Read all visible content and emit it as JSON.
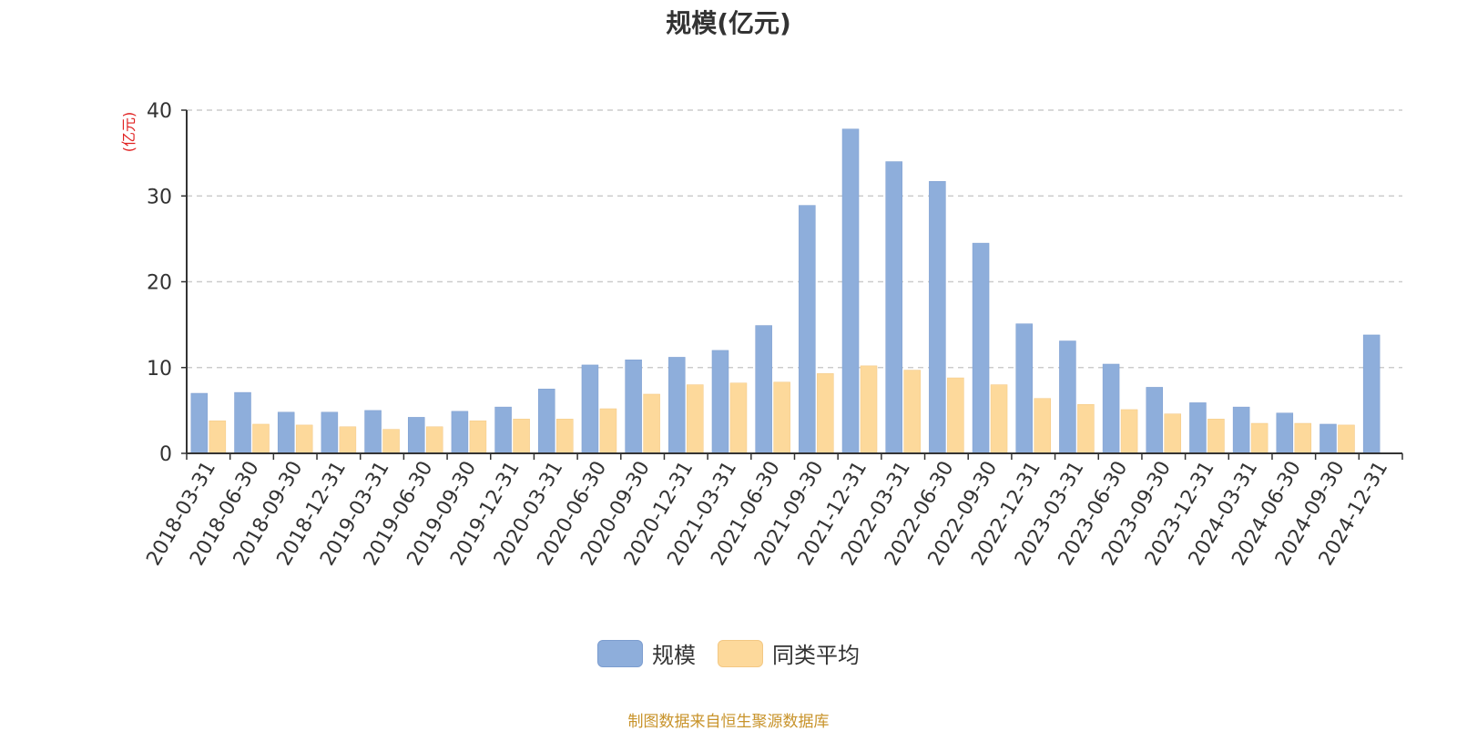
{
  "chart_data": {
    "type": "bar",
    "title": "规模(亿元)",
    "ylabel": "(亿元)",
    "ylim": [
      0,
      40
    ],
    "yticks": [
      0,
      10,
      20,
      30,
      40
    ],
    "grid": true,
    "legend_position": "bottom",
    "categories": [
      "2018-03-31",
      "2018-06-30",
      "2018-09-30",
      "2018-12-31",
      "2019-03-31",
      "2019-06-30",
      "2019-09-30",
      "2019-12-31",
      "2020-03-31",
      "2020-06-30",
      "2020-09-30",
      "2020-12-31",
      "2021-03-31",
      "2021-06-30",
      "2021-09-30",
      "2021-12-31",
      "2022-03-31",
      "2022-06-30",
      "2022-09-30",
      "2022-12-31",
      "2023-03-31",
      "2023-06-30",
      "2023-09-30",
      "2023-12-31",
      "2024-03-31",
      "2024-06-30",
      "2024-09-30",
      "2024-12-31"
    ],
    "series": [
      {
        "name": "规模",
        "color": "#8eaedb",
        "values": [
          7.0,
          7.1,
          4.8,
          4.8,
          5.0,
          4.2,
          4.9,
          5.4,
          7.5,
          10.3,
          10.9,
          11.2,
          12.0,
          14.9,
          28.9,
          37.8,
          34.0,
          31.7,
          24.5,
          15.1,
          13.1,
          10.4,
          7.7,
          5.9,
          5.4,
          4.7,
          3.4,
          13.8
        ]
      },
      {
        "name": "同类平均",
        "color": "#fdd99b",
        "values": [
          3.8,
          3.4,
          3.3,
          3.1,
          2.8,
          3.1,
          3.8,
          4.0,
          4.0,
          5.2,
          6.9,
          8.0,
          8.2,
          8.3,
          9.3,
          10.2,
          9.7,
          8.8,
          8.0,
          6.4,
          5.7,
          5.1,
          4.6,
          4.0,
          3.5,
          3.5,
          3.3,
          null
        ]
      }
    ]
  },
  "source_note": "制图数据来自恒生聚源数据库"
}
